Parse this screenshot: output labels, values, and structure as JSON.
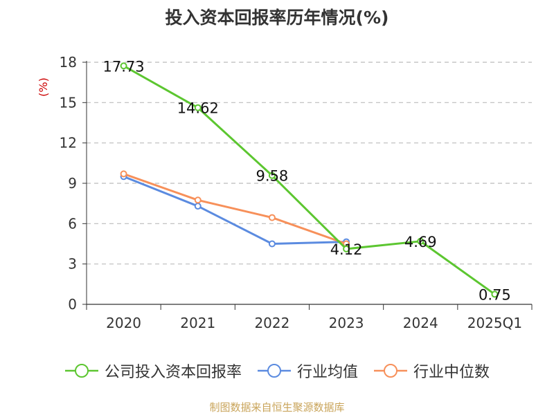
{
  "colors": {
    "company": "#5cc630",
    "industry_avg": "#5b8be0",
    "industry_median": "#f7905a",
    "grid": "#bbbbbb",
    "axis": "#333333",
    "unit": "#cc0000",
    "source": "#c9a45a"
  },
  "source_note": "制图数据来自恒生聚源数据库",
  "chart_data": {
    "type": "line",
    "title": "投入资本回报率历年情况(%)",
    "ylabel": "(%)",
    "xlabel": "",
    "categories": [
      "2020",
      "2021",
      "2022",
      "2023",
      "2024",
      "2025Q1"
    ],
    "ylim": [
      0,
      18
    ],
    "yticks": [
      0,
      3,
      6,
      9,
      12,
      15,
      18
    ],
    "grid": true,
    "legend_position": "bottom",
    "series": [
      {
        "name": "公司投入资本回报率",
        "color": "#5cc630",
        "values": [
          17.73,
          14.62,
          9.58,
          4.12,
          4.69,
          0.75
        ],
        "labels": [
          "17.73",
          "14.62",
          "9.58",
          "4.12",
          "4.69",
          "0.75"
        ]
      },
      {
        "name": "行业均值",
        "color": "#5b8be0",
        "values": [
          9.5,
          7.3,
          4.5,
          4.65,
          null,
          null
        ]
      },
      {
        "name": "行业中位数",
        "color": "#f7905a",
        "values": [
          9.7,
          7.75,
          6.45,
          4.5,
          null,
          null
        ]
      }
    ]
  }
}
